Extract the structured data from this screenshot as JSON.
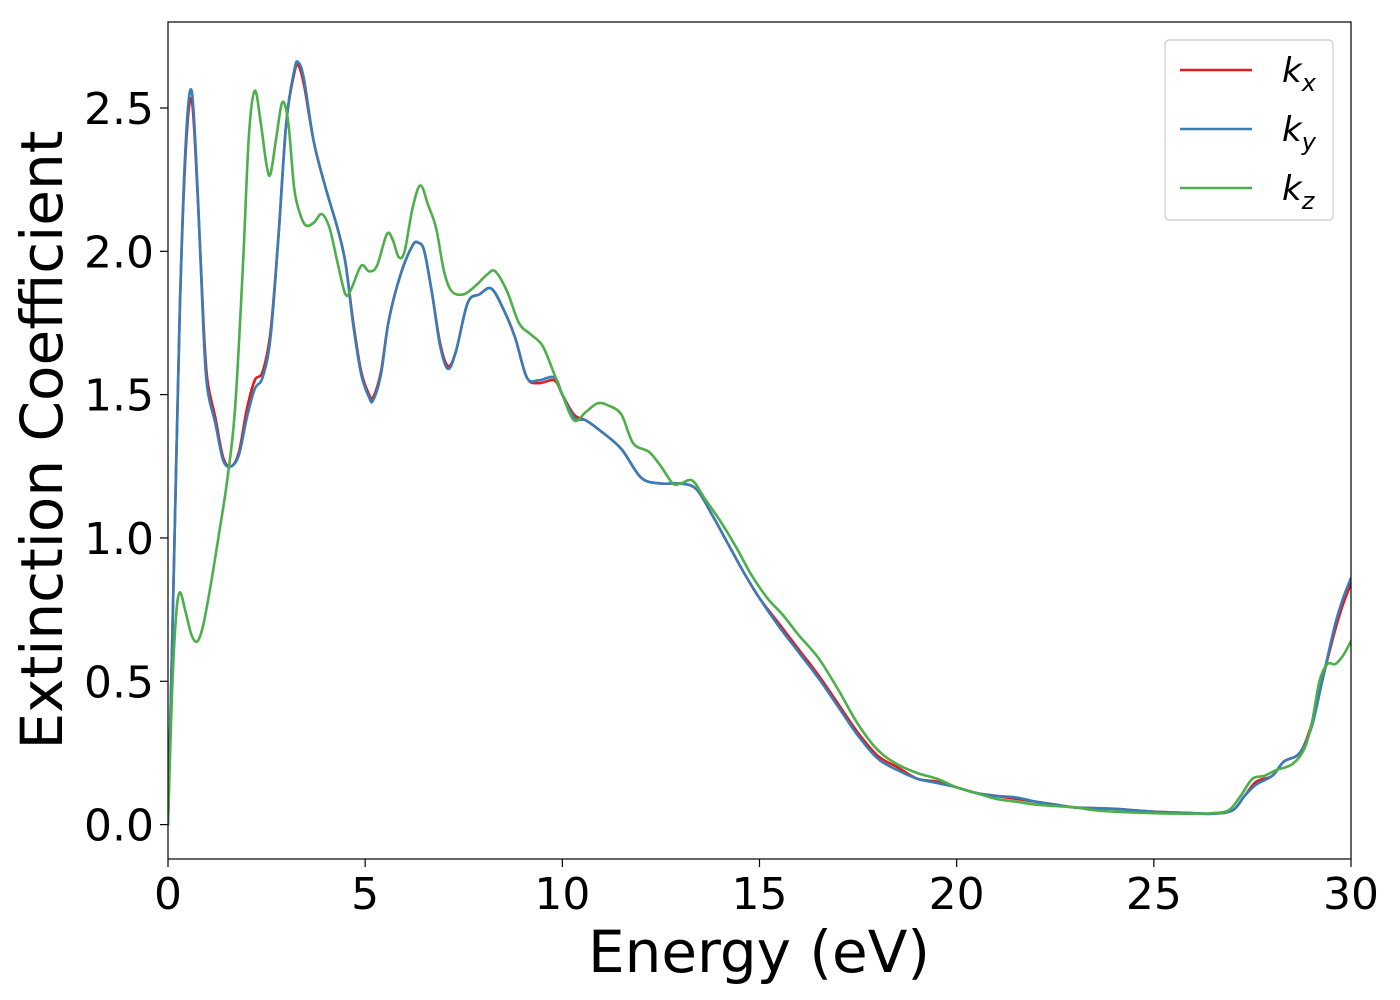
{
  "chart_data": {
    "type": "line",
    "title": "",
    "xlabel": "Energy (eV)",
    "ylabel": "Extinction Coefficient",
    "xlim": [
      0,
      30
    ],
    "ylim": [
      -0.12,
      2.8
    ],
    "xticks": [
      0,
      5,
      10,
      15,
      20,
      25,
      30
    ],
    "xtick_labels": [
      "0",
      "5",
      "10",
      "15",
      "20",
      "25",
      "30"
    ],
    "yticks": [
      0.0,
      0.5,
      1.0,
      1.5,
      2.0,
      2.5
    ],
    "ytick_labels": [
      "0.0",
      "0.5",
      "1.0",
      "1.5",
      "2.0",
      "2.5"
    ],
    "grid": false,
    "legend_position": "top-right",
    "series": [
      {
        "name": "k_x",
        "label_main": "k",
        "label_sub": "x",
        "color": "#e41a1c",
        "points": [
          [
            0,
            0.0
          ],
          [
            0.15,
            0.9
          ],
          [
            0.3,
            1.8
          ],
          [
            0.45,
            2.35
          ],
          [
            0.6,
            2.53
          ],
          [
            0.75,
            2.2
          ],
          [
            0.9,
            1.75
          ],
          [
            1.0,
            1.55
          ],
          [
            1.2,
            1.42
          ],
          [
            1.4,
            1.28
          ],
          [
            1.6,
            1.25
          ],
          [
            1.8,
            1.3
          ],
          [
            2.0,
            1.45
          ],
          [
            2.2,
            1.55
          ],
          [
            2.4,
            1.58
          ],
          [
            2.6,
            1.72
          ],
          [
            2.8,
            2.05
          ],
          [
            3.0,
            2.45
          ],
          [
            3.2,
            2.62
          ],
          [
            3.3,
            2.65
          ],
          [
            3.45,
            2.58
          ],
          [
            3.7,
            2.38
          ],
          [
            4.0,
            2.22
          ],
          [
            4.3,
            2.08
          ],
          [
            4.5,
            1.96
          ],
          [
            4.7,
            1.75
          ],
          [
            4.9,
            1.58
          ],
          [
            5.1,
            1.5
          ],
          [
            5.2,
            1.49
          ],
          [
            5.4,
            1.58
          ],
          [
            5.6,
            1.76
          ],
          [
            5.9,
            1.92
          ],
          [
            6.2,
            2.02
          ],
          [
            6.35,
            2.03
          ],
          [
            6.5,
            2.0
          ],
          [
            6.7,
            1.85
          ],
          [
            6.9,
            1.68
          ],
          [
            7.1,
            1.6
          ],
          [
            7.3,
            1.65
          ],
          [
            7.6,
            1.82
          ],
          [
            7.9,
            1.85
          ],
          [
            8.2,
            1.87
          ],
          [
            8.5,
            1.8
          ],
          [
            8.8,
            1.7
          ],
          [
            9.1,
            1.56
          ],
          [
            9.4,
            1.54
          ],
          [
            9.8,
            1.55
          ],
          [
            10.0,
            1.5
          ],
          [
            10.3,
            1.43
          ],
          [
            10.6,
            1.41
          ],
          [
            11.0,
            1.37
          ],
          [
            11.5,
            1.31
          ],
          [
            12.0,
            1.21
          ],
          [
            12.5,
            1.19
          ],
          [
            13.0,
            1.19
          ],
          [
            13.4,
            1.17
          ],
          [
            13.8,
            1.08
          ],
          [
            14.2,
            0.98
          ],
          [
            14.6,
            0.88
          ],
          [
            15.0,
            0.79
          ],
          [
            15.5,
            0.7
          ],
          [
            16.0,
            0.61
          ],
          [
            16.5,
            0.52
          ],
          [
            17.0,
            0.42
          ],
          [
            17.5,
            0.32
          ],
          [
            18.0,
            0.24
          ],
          [
            18.5,
            0.2
          ],
          [
            19.0,
            0.16
          ],
          [
            19.5,
            0.15
          ],
          [
            20.0,
            0.13
          ],
          [
            20.5,
            0.11
          ],
          [
            21.0,
            0.1
          ],
          [
            21.5,
            0.09
          ],
          [
            22.0,
            0.08
          ],
          [
            22.5,
            0.07
          ],
          [
            23.0,
            0.06
          ],
          [
            24.0,
            0.055
          ],
          [
            25.0,
            0.045
          ],
          [
            26.0,
            0.04
          ],
          [
            26.5,
            0.038
          ],
          [
            27.0,
            0.05
          ],
          [
            27.3,
            0.1
          ],
          [
            27.6,
            0.15
          ],
          [
            28.0,
            0.17
          ],
          [
            28.3,
            0.22
          ],
          [
            28.7,
            0.25
          ],
          [
            29.0,
            0.35
          ],
          [
            29.3,
            0.52
          ],
          [
            29.6,
            0.68
          ],
          [
            29.8,
            0.77
          ],
          [
            30.0,
            0.84
          ]
        ]
      },
      {
        "name": "k_y",
        "label_main": "k",
        "label_sub": "y",
        "color": "#377eb8",
        "points": [
          [
            0,
            0.0
          ],
          [
            0.15,
            0.9
          ],
          [
            0.3,
            1.8
          ],
          [
            0.45,
            2.38
          ],
          [
            0.6,
            2.56
          ],
          [
            0.75,
            2.22
          ],
          [
            0.9,
            1.72
          ],
          [
            1.0,
            1.52
          ],
          [
            1.2,
            1.4
          ],
          [
            1.4,
            1.27
          ],
          [
            1.6,
            1.25
          ],
          [
            1.8,
            1.29
          ],
          [
            2.0,
            1.42
          ],
          [
            2.2,
            1.52
          ],
          [
            2.4,
            1.56
          ],
          [
            2.6,
            1.7
          ],
          [
            2.8,
            2.05
          ],
          [
            3.0,
            2.45
          ],
          [
            3.2,
            2.63
          ],
          [
            3.3,
            2.66
          ],
          [
            3.45,
            2.6
          ],
          [
            3.7,
            2.38
          ],
          [
            4.0,
            2.22
          ],
          [
            4.3,
            2.08
          ],
          [
            4.5,
            1.96
          ],
          [
            4.7,
            1.74
          ],
          [
            4.9,
            1.57
          ],
          [
            5.1,
            1.49
          ],
          [
            5.2,
            1.48
          ],
          [
            5.4,
            1.57
          ],
          [
            5.6,
            1.76
          ],
          [
            5.9,
            1.92
          ],
          [
            6.2,
            2.02
          ],
          [
            6.35,
            2.03
          ],
          [
            6.5,
            2.0
          ],
          [
            6.7,
            1.85
          ],
          [
            6.9,
            1.67
          ],
          [
            7.1,
            1.59
          ],
          [
            7.3,
            1.65
          ],
          [
            7.6,
            1.82
          ],
          [
            7.9,
            1.85
          ],
          [
            8.2,
            1.87
          ],
          [
            8.5,
            1.8
          ],
          [
            8.8,
            1.7
          ],
          [
            9.1,
            1.56
          ],
          [
            9.4,
            1.55
          ],
          [
            9.8,
            1.56
          ],
          [
            10.0,
            1.5
          ],
          [
            10.3,
            1.42
          ],
          [
            10.6,
            1.41
          ],
          [
            11.0,
            1.37
          ],
          [
            11.5,
            1.31
          ],
          [
            12.0,
            1.21
          ],
          [
            12.5,
            1.19
          ],
          [
            13.0,
            1.19
          ],
          [
            13.4,
            1.17
          ],
          [
            13.8,
            1.08
          ],
          [
            14.2,
            0.98
          ],
          [
            14.6,
            0.88
          ],
          [
            15.0,
            0.79
          ],
          [
            15.5,
            0.69
          ],
          [
            16.0,
            0.6
          ],
          [
            16.5,
            0.51
          ],
          [
            17.0,
            0.41
          ],
          [
            17.5,
            0.31
          ],
          [
            18.0,
            0.23
          ],
          [
            18.5,
            0.19
          ],
          [
            19.0,
            0.16
          ],
          [
            19.5,
            0.145
          ],
          [
            20.0,
            0.13
          ],
          [
            20.5,
            0.11
          ],
          [
            21.0,
            0.1
          ],
          [
            21.5,
            0.095
          ],
          [
            22.0,
            0.08
          ],
          [
            22.5,
            0.07
          ],
          [
            23.0,
            0.06
          ],
          [
            24.0,
            0.055
          ],
          [
            25.0,
            0.045
          ],
          [
            26.0,
            0.04
          ],
          [
            26.5,
            0.038
          ],
          [
            27.0,
            0.05
          ],
          [
            27.3,
            0.1
          ],
          [
            27.6,
            0.14
          ],
          [
            28.0,
            0.17
          ],
          [
            28.3,
            0.22
          ],
          [
            28.7,
            0.25
          ],
          [
            29.0,
            0.34
          ],
          [
            29.3,
            0.52
          ],
          [
            29.6,
            0.7
          ],
          [
            29.8,
            0.79
          ],
          [
            30.0,
            0.86
          ]
        ]
      },
      {
        "name": "k_z",
        "label_main": "k",
        "label_sub": "z",
        "color": "#4daf4a",
        "points": [
          [
            0,
            0.0
          ],
          [
            0.1,
            0.45
          ],
          [
            0.2,
            0.72
          ],
          [
            0.3,
            0.81
          ],
          [
            0.45,
            0.74
          ],
          [
            0.6,
            0.66
          ],
          [
            0.75,
            0.64
          ],
          [
            0.9,
            0.7
          ],
          [
            1.1,
            0.85
          ],
          [
            1.3,
            1.02
          ],
          [
            1.5,
            1.2
          ],
          [
            1.7,
            1.45
          ],
          [
            1.9,
            1.95
          ],
          [
            2.05,
            2.4
          ],
          [
            2.2,
            2.56
          ],
          [
            2.35,
            2.45
          ],
          [
            2.5,
            2.3
          ],
          [
            2.6,
            2.27
          ],
          [
            2.75,
            2.4
          ],
          [
            2.9,
            2.52
          ],
          [
            3.05,
            2.45
          ],
          [
            3.2,
            2.22
          ],
          [
            3.35,
            2.13
          ],
          [
            3.5,
            2.09
          ],
          [
            3.7,
            2.1
          ],
          [
            3.9,
            2.13
          ],
          [
            4.1,
            2.08
          ],
          [
            4.3,
            1.96
          ],
          [
            4.5,
            1.85
          ],
          [
            4.65,
            1.87
          ],
          [
            4.9,
            1.95
          ],
          [
            5.1,
            1.93
          ],
          [
            5.3,
            1.95
          ],
          [
            5.55,
            2.06
          ],
          [
            5.7,
            2.04
          ],
          [
            5.85,
            1.98
          ],
          [
            6.0,
            2.0
          ],
          [
            6.2,
            2.15
          ],
          [
            6.4,
            2.23
          ],
          [
            6.6,
            2.16
          ],
          [
            6.8,
            2.08
          ],
          [
            7.0,
            1.93
          ],
          [
            7.2,
            1.86
          ],
          [
            7.5,
            1.85
          ],
          [
            7.8,
            1.88
          ],
          [
            8.1,
            1.92
          ],
          [
            8.3,
            1.93
          ],
          [
            8.6,
            1.86
          ],
          [
            8.9,
            1.75
          ],
          [
            9.2,
            1.71
          ],
          [
            9.5,
            1.67
          ],
          [
            9.8,
            1.57
          ],
          [
            10.0,
            1.5
          ],
          [
            10.3,
            1.41
          ],
          [
            10.6,
            1.44
          ],
          [
            10.9,
            1.47
          ],
          [
            11.2,
            1.46
          ],
          [
            11.5,
            1.43
          ],
          [
            11.8,
            1.33
          ],
          [
            12.2,
            1.3
          ],
          [
            12.5,
            1.25
          ],
          [
            12.8,
            1.19
          ],
          [
            13.0,
            1.19
          ],
          [
            13.3,
            1.2
          ],
          [
            13.6,
            1.14
          ],
          [
            14.0,
            1.06
          ],
          [
            14.4,
            0.97
          ],
          [
            14.8,
            0.87
          ],
          [
            15.2,
            0.79
          ],
          [
            15.6,
            0.73
          ],
          [
            16.0,
            0.66
          ],
          [
            16.5,
            0.58
          ],
          [
            17.0,
            0.47
          ],
          [
            17.5,
            0.35
          ],
          [
            18.0,
            0.26
          ],
          [
            18.5,
            0.21
          ],
          [
            19.0,
            0.18
          ],
          [
            19.5,
            0.16
          ],
          [
            20.0,
            0.13
          ],
          [
            20.5,
            0.11
          ],
          [
            21.0,
            0.09
          ],
          [
            21.5,
            0.08
          ],
          [
            22.0,
            0.07
          ],
          [
            22.5,
            0.065
          ],
          [
            23.0,
            0.06
          ],
          [
            23.5,
            0.05
          ],
          [
            24.0,
            0.045
          ],
          [
            25.0,
            0.04
          ],
          [
            26.0,
            0.038
          ],
          [
            26.5,
            0.04
          ],
          [
            26.9,
            0.05
          ],
          [
            27.2,
            0.1
          ],
          [
            27.5,
            0.16
          ],
          [
            27.8,
            0.17
          ],
          [
            28.1,
            0.19
          ],
          [
            28.5,
            0.21
          ],
          [
            28.8,
            0.26
          ],
          [
            29.0,
            0.35
          ],
          [
            29.2,
            0.5
          ],
          [
            29.4,
            0.56
          ],
          [
            29.6,
            0.56
          ],
          [
            29.8,
            0.59
          ],
          [
            30.0,
            0.64
          ]
        ]
      }
    ]
  }
}
